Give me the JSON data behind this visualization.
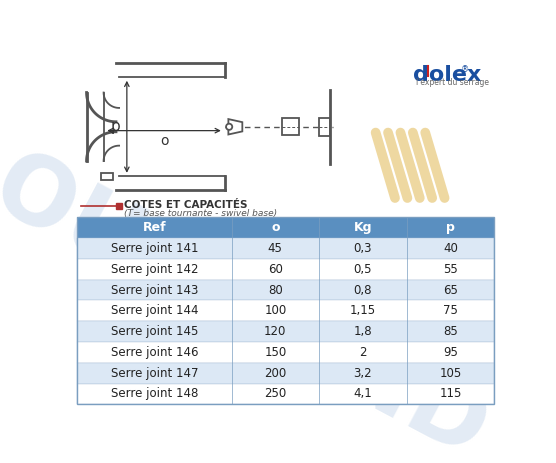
{
  "title_section": "COTES ET CAPACITÉS",
  "subtitle_section": "(T= base tournante - swivel base)",
  "header": [
    "Ref",
    "o",
    "Kg",
    "p"
  ],
  "rows": [
    [
      "Serre joint 141",
      "45",
      "0,3",
      "40"
    ],
    [
      "Serre joint 142",
      "60",
      "0,5",
      "55"
    ],
    [
      "Serre joint 143",
      "80",
      "0,8",
      "65"
    ],
    [
      "Serre joint 144",
      "100",
      "1,15",
      "75"
    ],
    [
      "Serre joint 145",
      "120",
      "1,8",
      "85"
    ],
    [
      "Serre joint 146",
      "150",
      "2",
      "95"
    ],
    [
      "Serre joint 147",
      "200",
      "3,2",
      "105"
    ],
    [
      "Serre joint 148",
      "250",
      "4,1",
      "115"
    ]
  ],
  "header_bg": "#5a8fc0",
  "header_fg": "#ffffff",
  "row_bg_odd": "#dce8f5",
  "row_bg_even": "#ffffff",
  "table_border": "#aabfd8",
  "bg_color": "#ffffff",
  "logo_text_d": "d",
  "logo_text_rest": "lex",
  "logo_sub": "l'expert du serrage",
  "logo_color": "#1a4fa0",
  "logo_dash_color": "#cc2222",
  "watermark_text": "OUTILAND",
  "watermark_color": "#c8d8eb",
  "watermark_alpha": 0.5,
  "stripe_color": "#e8c87a",
  "stripe_alpha": 0.7,
  "section_line_color": "#b03030",
  "section_dot_color": "#b03030",
  "title_color": "#333333",
  "diagram_color": "#555555",
  "dim_color": "#333333"
}
